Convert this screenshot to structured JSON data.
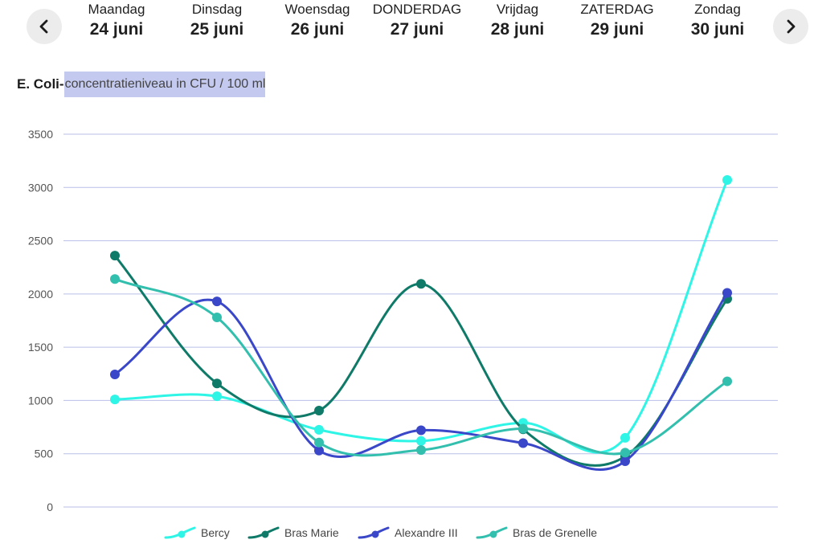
{
  "nav": {
    "prev_icon": "chevron-left-icon",
    "next_icon": "chevron-right-icon"
  },
  "days": [
    {
      "name": "Maandag",
      "date": "24 juni"
    },
    {
      "name": "Dinsdag",
      "date": "25 juni"
    },
    {
      "name": "Woensdag",
      "date": "26 juni"
    },
    {
      "name": "DONDERDAG",
      "date": "27 juni"
    },
    {
      "name": "Vrijdag",
      "date": "28 juni"
    },
    {
      "name": "ZATERDAG",
      "date": "29 juni"
    },
    {
      "name": "Zondag",
      "date": "30 juni"
    }
  ],
  "chart_data": {
    "type": "line",
    "title": "E. Coli-",
    "subtitle": "concentratieniveau in CFU / 100 ml",
    "categories": [
      "24 juni",
      "25 juni",
      "26 juni",
      "27 juni",
      "28 juni",
      "29 juni",
      "30 juni"
    ],
    "ylim": [
      0,
      3500
    ],
    "yticks": [
      "0",
      "500",
      "1000",
      "1500",
      "2000",
      "2500",
      "3000",
      "3500"
    ],
    "grid": true,
    "legend_position": "bottom",
    "series": [
      {
        "name": "Bercy",
        "color": "#2ef5e6",
        "values": [
          1010,
          1040,
          725,
          620,
          790,
          650,
          3070
        ]
      },
      {
        "name": "Bras Marie",
        "color": "#0f7a68",
        "values": [
          2360,
          1160,
          905,
          2095,
          730,
          475,
          1955
        ]
      },
      {
        "name": "Alexandre III",
        "color": "#3a47c9",
        "values": [
          1245,
          1930,
          530,
          720,
          600,
          430,
          2010
        ]
      },
      {
        "name": "Bras de Grenelle",
        "color": "#33bfae",
        "values": [
          2140,
          1780,
          605,
          535,
          735,
          510,
          1180
        ]
      }
    ]
  }
}
